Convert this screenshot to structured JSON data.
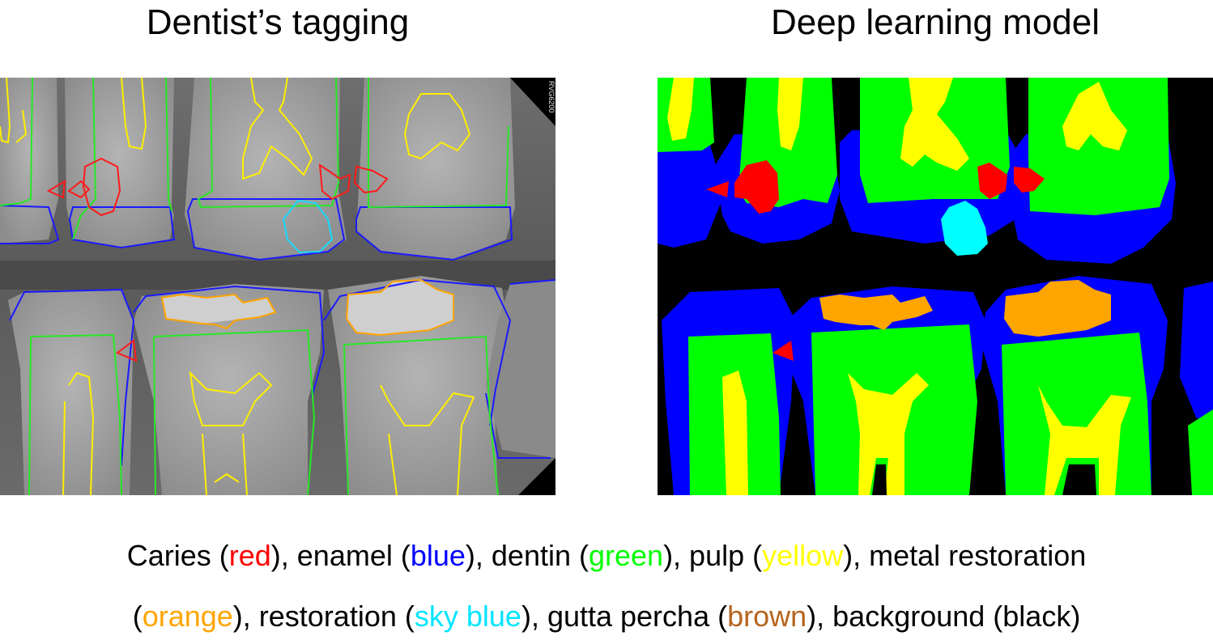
{
  "titles": {
    "left": "Dentist’s tagging",
    "right": "Deep learning model"
  },
  "image_watermark": "RVG6200",
  "caption": {
    "line1": [
      {
        "text": "Caries (",
        "color": "#000000"
      },
      {
        "text": "red",
        "color": "#ff0000"
      },
      {
        "text": "), enamel (",
        "color": "#000000"
      },
      {
        "text": "blue",
        "color": "#0000ff"
      },
      {
        "text": "), dentin (",
        "color": "#000000"
      },
      {
        "text": "green",
        "color": "#00ff00"
      },
      {
        "text": "), pulp (",
        "color": "#000000"
      },
      {
        "text": "yellow",
        "color": "#ffff00"
      },
      {
        "text": "), metal restoration",
        "color": "#000000"
      }
    ],
    "line2": [
      {
        "text": "(",
        "color": "#000000"
      },
      {
        "text": "orange",
        "color": "#ffa500"
      },
      {
        "text": "), restoration (",
        "color": "#000000"
      },
      {
        "text": "sky blue",
        "color": "#00e5ff"
      },
      {
        "text": "), gutta percha (",
        "color": "#000000"
      },
      {
        "text": "brown",
        "color": "#b5651d"
      },
      {
        "text": "), background (black)",
        "color": "#000000"
      }
    ]
  },
  "class_colors": {
    "caries": "#ff0000",
    "enamel": "#0000ff",
    "dentin": "#00ff00",
    "pulp": "#ffff00",
    "metal_restoration": "#ffa500",
    "restoration": "#00e5ff",
    "gutta_percha": "#b5651d",
    "background": "#000000"
  }
}
